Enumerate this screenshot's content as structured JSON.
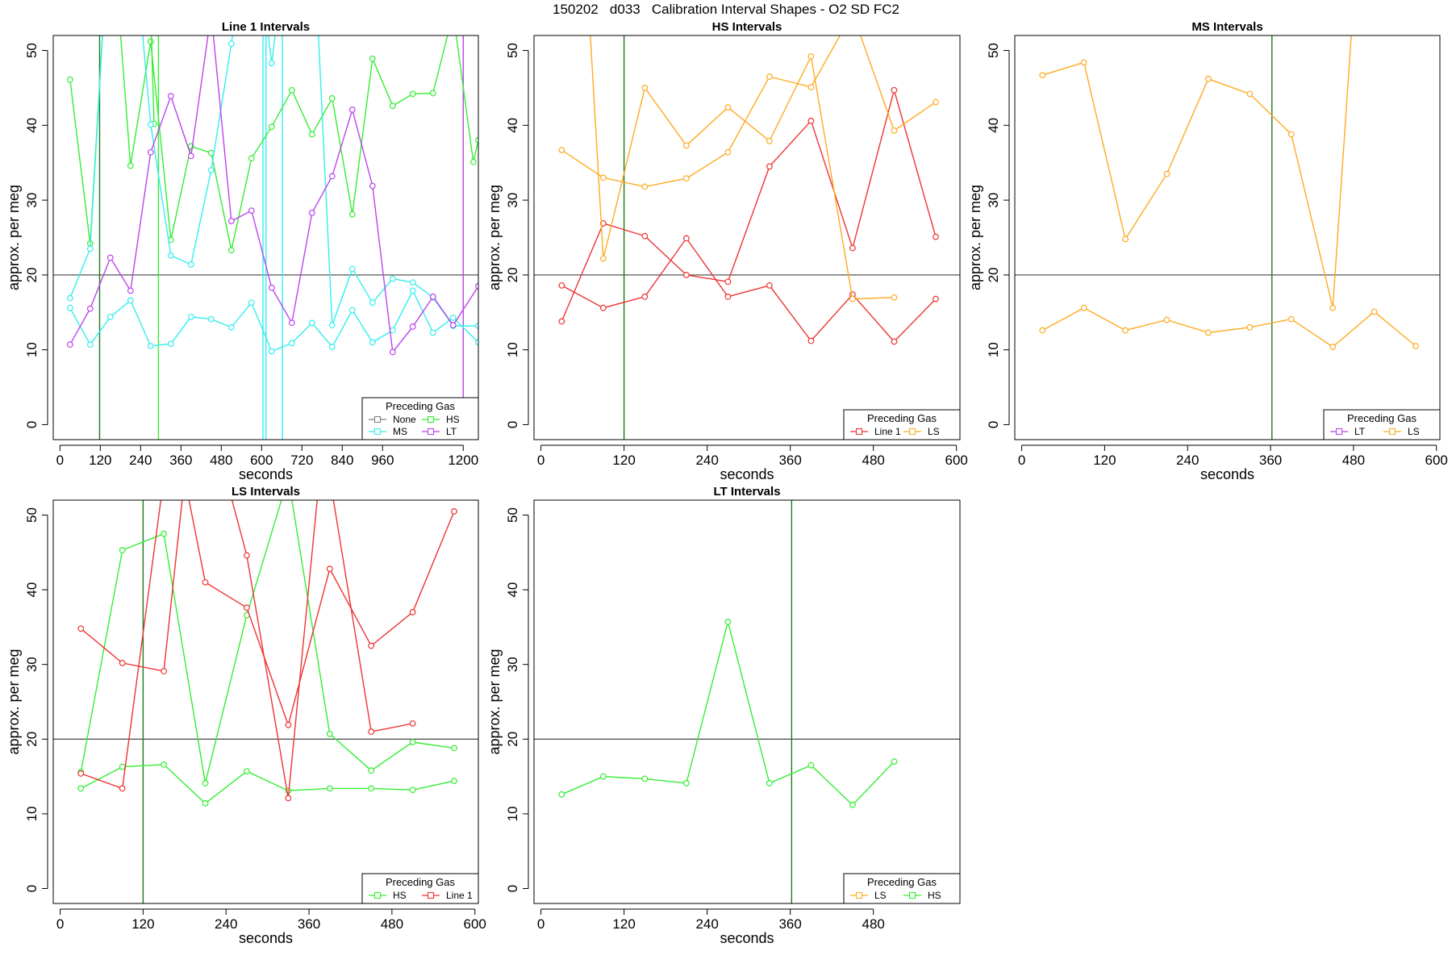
{
  "title": "150202   d033   Calibration Interval Shapes - O2 SD FC2",
  "colors": {
    "None": "#808080",
    "HS": "#33ee33",
    "MS": "#33eeee",
    "LT": "#bb44ee",
    "Line 1": "#ee3333",
    "LS": "#ffaa22"
  },
  "chart_data": [
    {
      "type": "line",
      "title": "Line 1 Intervals",
      "xlabel": "seconds",
      "ylabel": "approx. per meg",
      "xlim": [
        -20,
        1245
      ],
      "ylim": [
        -2,
        52
      ],
      "xticks": [
        0,
        120,
        240,
        360,
        480,
        600,
        720,
        840,
        960,
        1200
      ],
      "yticks": [
        0,
        10,
        20,
        30,
        40,
        50
      ],
      "hline": 20,
      "vlines": [
        {
          "x": 118,
          "gas": "HS",
          "dark": true
        },
        {
          "x": 293,
          "gas": "HS"
        },
        {
          "x": 604,
          "gas": "MS"
        },
        {
          "x": 613,
          "gas": "MS"
        },
        {
          "x": 662,
          "gas": "MS"
        },
        {
          "x": 1200,
          "gas": "LT"
        }
      ],
      "legend": {
        "title": "Preceding Gas",
        "items": [
          "None",
          "HS",
          "MS",
          "LT"
        ],
        "cols": 2
      },
      "series": [
        {
          "name": "HS",
          "x": [
            30,
            90,
            150,
            210,
            270,
            330,
            390,
            450,
            510,
            570,
            630,
            690,
            750,
            810,
            870,
            930,
            990,
            1050,
            1110,
            1170,
            1230,
            1245
          ],
          "y": [
            46.1,
            24.2,
            70,
            34.6,
            51.2,
            24.7,
            37.2,
            36.3,
            23.3,
            35.6,
            39.8,
            44.7,
            38.8,
            43.6,
            28.1,
            48.9,
            42.6,
            44.2,
            44.3,
            55,
            35.1,
            38
          ]
        },
        {
          "name": "HS",
          "x": [
            270,
            280
          ],
          "y": [
            55,
            40.2
          ],
          "markers": [
            1
          ]
        },
        {
          "name": "MS",
          "x": [
            30,
            90,
            150,
            210,
            270,
            330,
            390,
            450,
            510,
            570,
            630,
            690,
            750,
            810,
            870,
            930,
            990,
            1050,
            1110,
            1170,
            1245
          ],
          "y": [
            15.6,
            10.7,
            14.4,
            16.6,
            10.5,
            10.8,
            14.4,
            14.1,
            13.0,
            16.3,
            9.8,
            10.9,
            13.6,
            10.4,
            15.3,
            11.0,
            12.6,
            17.9,
            12.3,
            14.3,
            11.0
          ]
        },
        {
          "name": "MS",
          "x": [
            30,
            90,
            150,
            210,
            270,
            330,
            390,
            450,
            510,
            570,
            630,
            690,
            750,
            810,
            870,
            930,
            990,
            1050,
            1110,
            1170,
            1245
          ],
          "y": [
            16.9,
            23.5,
            70,
            70,
            40.1,
            22.6,
            21.4,
            34.0,
            50.9,
            70,
            48.3,
            70,
            70,
            13.3,
            20.8,
            16.3,
            19.5,
            19.0,
            17.0,
            13.2,
            13.2
          ]
        },
        {
          "name": "LT",
          "x": [
            30,
            90,
            150,
            210,
            270,
            330,
            390,
            450,
            510,
            570,
            630,
            690,
            750,
            810,
            870,
            930,
            990,
            1050,
            1110,
            1170,
            1245
          ],
          "y": [
            10.7,
            15.5,
            22.3,
            17.9,
            36.4,
            43.9,
            35.9,
            55,
            27.2,
            28.6,
            18.3,
            13.6,
            28.3,
            33.2,
            42.1,
            31.9,
            9.7,
            13.1,
            17.1,
            13.3,
            18.5
          ]
        }
      ]
    },
    {
      "type": "line",
      "title": "HS Intervals",
      "xlabel": "seconds",
      "ylabel": "approx. per meg",
      "xlim": [
        -10,
        605
      ],
      "ylim": [
        -2,
        52
      ],
      "xticks": [
        0,
        120,
        240,
        360,
        480,
        600
      ],
      "yticks": [
        0,
        10,
        20,
        30,
        40,
        50
      ],
      "hline": 20,
      "vlines": [
        {
          "x": 120,
          "gas": "HS",
          "dark": true
        }
      ],
      "legend": {
        "title": "Preceding Gas",
        "items": [
          "Line 1",
          "LS"
        ],
        "cols": 2
      },
      "series": [
        {
          "name": "Line 1",
          "x": [
            30,
            90,
            150,
            210,
            270,
            330,
            390,
            450,
            510,
            570
          ],
          "y": [
            13.8,
            26.9,
            25.2,
            20.0,
            19.1,
            34.5,
            40.6,
            23.6,
            44.7,
            25.1
          ]
        },
        {
          "name": "Line 1",
          "x": [
            30,
            90,
            150,
            210,
            270,
            330,
            390,
            450,
            510,
            570
          ],
          "y": [
            18.6,
            15.6,
            17.1,
            24.9,
            17.1,
            18.6,
            11.2,
            17.4,
            11.1,
            16.8
          ]
        },
        {
          "name": "LS",
          "x": [
            30,
            90,
            150,
            210,
            270,
            330,
            390,
            450,
            510,
            570
          ],
          "y": [
            36.7,
            33.0,
            31.8,
            32.9,
            36.4,
            46.5,
            45.1,
            55,
            39.3,
            43.1
          ]
        },
        {
          "name": "LS",
          "x": [
            60,
            90,
            150,
            210,
            270,
            330,
            390,
            450,
            510
          ],
          "y": [
            70,
            22.2,
            45.0,
            37.3,
            42.4,
            37.9,
            49.2,
            16.8,
            17.0
          ],
          "markers": [
            1,
            2,
            3,
            4,
            5,
            6,
            7,
            8
          ]
        }
      ]
    },
    {
      "type": "line",
      "title": "MS Intervals",
      "xlabel": "seconds",
      "ylabel": "approx. per meg",
      "xlim": [
        -10,
        605
      ],
      "ylim": [
        -2,
        52
      ],
      "xticks": [
        0,
        120,
        240,
        360,
        480,
        600
      ],
      "yticks": [
        0,
        10,
        20,
        30,
        40,
        50
      ],
      "hline": 20,
      "vlines": [
        {
          "x": 362,
          "gas": "HS",
          "dark": true
        }
      ],
      "legend": {
        "title": "Preceding Gas",
        "items": [
          "LT",
          "LS"
        ],
        "cols": 2
      },
      "series": [
        {
          "name": "LS",
          "x": [
            30,
            90,
            150,
            210,
            270,
            330,
            390,
            450,
            510,
            570
          ],
          "y": [
            12.6,
            15.6,
            12.6,
            14.0,
            12.3,
            13.0,
            14.1,
            10.4,
            15.1,
            10.5
          ]
        },
        {
          "name": "LS",
          "x": [
            30,
            90,
            150,
            210,
            270,
            330,
            390,
            450,
            490
          ],
          "y": [
            46.7,
            48.4,
            24.8,
            33.5,
            46.2,
            44.2,
            38.8,
            15.6,
            70
          ],
          "markers": [
            0,
            1,
            2,
            3,
            4,
            5,
            6,
            7
          ]
        }
      ]
    },
    {
      "type": "line",
      "title": "LS Intervals",
      "xlabel": "seconds",
      "ylabel": "approx. per meg",
      "xlim": [
        -10,
        605
      ],
      "ylim": [
        -2,
        52
      ],
      "xticks": [
        0,
        120,
        240,
        360,
        480,
        600
      ],
      "yticks": [
        0,
        10,
        20,
        30,
        40,
        50
      ],
      "hline": 20,
      "vlines": [
        {
          "x": 120,
          "gas": "HS",
          "dark": true
        }
      ],
      "legend": {
        "title": "Preceding Gas",
        "items": [
          "HS",
          "Line 1"
        ],
        "cols": 2
      },
      "series": [
        {
          "name": "HS",
          "x": [
            30,
            90,
            150,
            210,
            270,
            330,
            390,
            450,
            510,
            570
          ],
          "y": [
            13.4,
            16.3,
            16.6,
            11.4,
            15.7,
            13.1,
            13.4,
            13.4,
            13.2,
            14.4
          ]
        },
        {
          "name": "HS",
          "x": [
            30,
            90,
            150,
            210,
            270,
            330,
            390,
            450,
            510,
            570
          ],
          "y": [
            15.6,
            45.3,
            47.5,
            14.1,
            36.6,
            55,
            20.7,
            15.8,
            19.6,
            18.8
          ]
        },
        {
          "name": "Line 1",
          "x": [
            30,
            90,
            150,
            180,
            210,
            270,
            330,
            390,
            450,
            510,
            570
          ],
          "y": [
            34.8,
            30.2,
            29.1,
            55,
            41.0,
            37.6,
            21.9,
            42.8,
            32.5,
            37.0,
            50.5
          ],
          "markers": [
            0,
            1,
            2,
            4,
            5,
            6,
            7,
            8,
            9,
            10
          ]
        },
        {
          "name": "Line 1",
          "x": [
            30,
            90,
            150,
            240,
            270,
            330,
            375,
            390,
            450,
            510
          ],
          "y": [
            15.4,
            13.4,
            55,
            55,
            44.6,
            12.1,
            55,
            55,
            21.0,
            22.1
          ],
          "markers": [
            0,
            1,
            4,
            5,
            8,
            9
          ]
        }
      ]
    },
    {
      "type": "line",
      "title": "LT Intervals",
      "xlabel": "seconds",
      "ylabel": "approx. per meg",
      "xlim": [
        -10,
        605
      ],
      "ylim": [
        -2,
        52
      ],
      "xticks": [
        0,
        120,
        240,
        360,
        480
      ],
      "yticks": [
        0,
        10,
        20,
        30,
        40,
        50
      ],
      "hline": 20,
      "vlines": [
        {
          "x": 362,
          "gas": "HS",
          "dark": true
        }
      ],
      "legend": {
        "title": "Preceding Gas",
        "items": [
          "LS",
          "HS"
        ],
        "cols": 2
      },
      "series": [
        {
          "name": "HS",
          "x": [
            30,
            90,
            150,
            210,
            270,
            330,
            390,
            450,
            510
          ],
          "y": [
            12.6,
            15.0,
            14.7,
            14.1,
            35.7,
            14.1,
            16.5,
            11.2,
            17.0
          ]
        }
      ]
    }
  ]
}
